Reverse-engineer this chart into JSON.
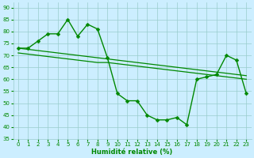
{
  "x": [
    0,
    1,
    2,
    3,
    4,
    5,
    6,
    7,
    8,
    9,
    10,
    11,
    12,
    13,
    14,
    15,
    16,
    17,
    18,
    19,
    20,
    21,
    22,
    23
  ],
  "y_main": [
    73,
    73,
    76,
    79,
    79,
    85,
    78,
    83,
    81,
    69,
    54,
    51,
    51,
    45,
    43,
    43,
    44,
    41,
    60,
    61,
    62,
    70,
    68,
    54
  ],
  "y_reg1": [
    73,
    72.5,
    72,
    71.5,
    71,
    70.5,
    70,
    69.5,
    69,
    68.5,
    68,
    67.5,
    67,
    66.5,
    66,
    65.5,
    65,
    64.5,
    64,
    63.5,
    63,
    62.5,
    62,
    61.5
  ],
  "y_reg2": [
    71,
    70.5,
    70,
    69.5,
    69,
    68.5,
    68,
    67.5,
    67,
    67,
    66.5,
    66,
    65.5,
    65,
    64.5,
    64,
    63.5,
    63,
    62.5,
    62,
    61.5,
    61,
    60.5,
    60
  ],
  "background": "#cceeff",
  "grid_color": "#99cccc",
  "line_color": "#008800",
  "marker": "D",
  "markersize": 2.5,
  "linewidth": 1.0,
  "xlabel": "Humidité relative (%)",
  "ylim": [
    35,
    92
  ],
  "xlim": [
    -0.5,
    23.5
  ],
  "yticks": [
    35,
    40,
    45,
    50,
    55,
    60,
    65,
    70,
    75,
    80,
    85,
    90
  ],
  "xticks": [
    0,
    1,
    2,
    3,
    4,
    5,
    6,
    7,
    8,
    9,
    10,
    11,
    12,
    13,
    14,
    15,
    16,
    17,
    18,
    19,
    20,
    21,
    22,
    23
  ],
  "xlabel_fontsize": 6.0,
  "tick_fontsize": 5.0
}
